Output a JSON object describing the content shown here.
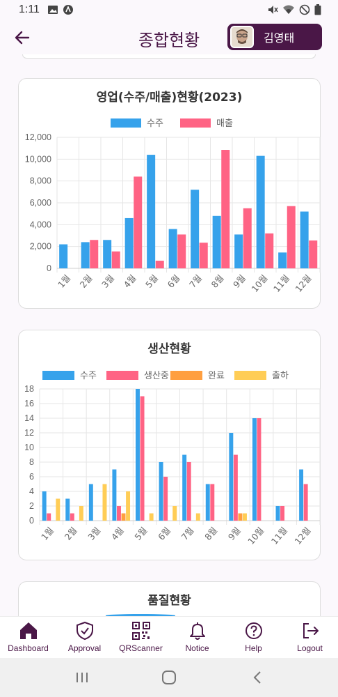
{
  "status": {
    "time": "1:11"
  },
  "header": {
    "title": "종합현황",
    "user_name": "김영태"
  },
  "sales_card": {
    "title": "영업(수주/매출)현황(2023)",
    "legend": [
      "수주",
      "매출"
    ],
    "colors": [
      "#36a2eb",
      "#ff6384"
    ],
    "chart_data": {
      "type": "bar",
      "categories": [
        "1월",
        "2월",
        "3월",
        "4월",
        "5월",
        "6월",
        "7월",
        "8월",
        "9월",
        "10월",
        "11월",
        "12월"
      ],
      "series": [
        {
          "name": "수주",
          "values": [
            2200,
            2400,
            2600,
            4600,
            10400,
            3600,
            7200,
            4800,
            3100,
            10300,
            1450,
            5200
          ]
        },
        {
          "name": "매출",
          "values": [
            0,
            2600,
            1550,
            8400,
            700,
            3100,
            2350,
            10850,
            5500,
            3200,
            5700,
            2550
          ]
        }
      ],
      "ylim": [
        0,
        12000
      ],
      "yticks": [
        "0",
        "2,000",
        "4,000",
        "6,000",
        "8,000",
        "10,000",
        "12,000"
      ],
      "ytick_values": [
        0,
        2000,
        4000,
        6000,
        8000,
        10000,
        12000
      ]
    }
  },
  "production_card": {
    "title": "생산현황",
    "legend": [
      "수주",
      "생산중",
      "완료",
      "출하"
    ],
    "colors": [
      "#36a2eb",
      "#ff6384",
      "#ff9f40",
      "#ffcd56"
    ],
    "chart_data": {
      "type": "bar",
      "categories": [
        "1월",
        "2월",
        "3월",
        "4월",
        "5월",
        "6월",
        "7월",
        "8월",
        "9월",
        "10월",
        "11월",
        "12월"
      ],
      "series": [
        {
          "name": "수주",
          "values": [
            4,
            3,
            5,
            7,
            18,
            8,
            9,
            5,
            12,
            14,
            2,
            7
          ]
        },
        {
          "name": "생산중",
          "values": [
            1,
            1,
            0,
            2,
            17,
            6,
            8,
            5,
            9,
            14,
            2,
            5
          ]
        },
        {
          "name": "완료",
          "values": [
            0,
            0,
            0,
            1,
            0,
            0,
            0,
            0,
            1,
            0,
            0,
            0
          ]
        },
        {
          "name": "출하",
          "values": [
            3,
            2,
            5,
            4,
            1,
            2,
            1,
            0,
            1,
            0,
            0,
            0
          ]
        }
      ],
      "ylim": [
        0,
        18
      ],
      "yticks": [
        "0",
        "2",
        "4",
        "6",
        "8",
        "10",
        "12",
        "14",
        "16",
        "18"
      ],
      "ytick_values": [
        0,
        2,
        4,
        6,
        8,
        10,
        12,
        14,
        16,
        18
      ]
    }
  },
  "quality_card": {
    "title": "품질현황"
  },
  "nav": [
    {
      "label": "Dashboard",
      "icon": "home-icon"
    },
    {
      "label": "Approval",
      "icon": "shield-check-icon"
    },
    {
      "label": "QRScanner",
      "icon": "qr-code-icon"
    },
    {
      "label": "Notice",
      "icon": "bell-icon"
    },
    {
      "label": "Help",
      "icon": "help-icon"
    },
    {
      "label": "Logout",
      "icon": "logout-icon"
    }
  ]
}
